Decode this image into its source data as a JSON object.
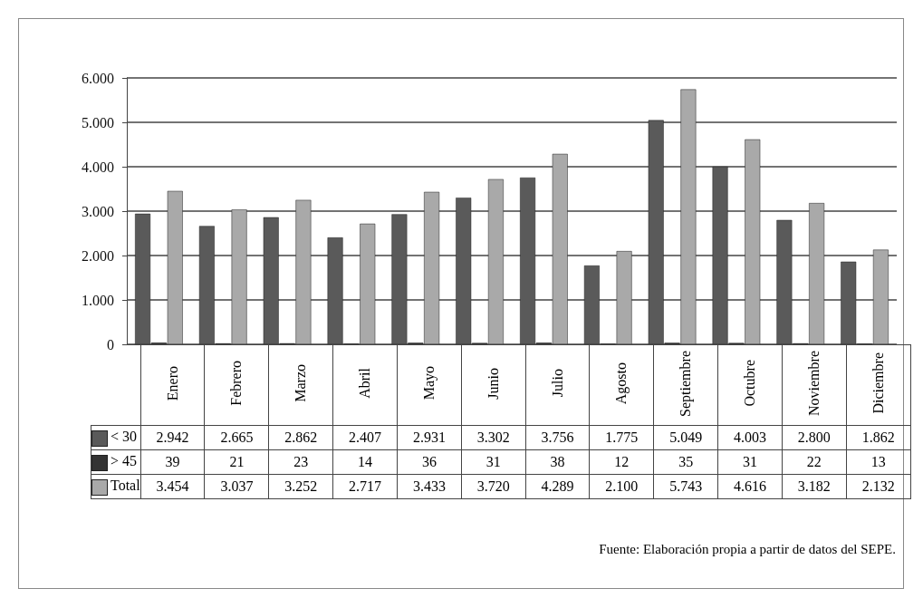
{
  "chart_data": {
    "type": "bar",
    "categories": [
      "Enero",
      "Febrero",
      "Marzo",
      "Abril",
      "Mayo",
      "Junio",
      "Julio",
      "Agosto",
      "Septiembre",
      "Octubre",
      "Noviembre",
      "Diciembre"
    ],
    "series": [
      {
        "name": "< 30",
        "color": "#5a5a5a",
        "values": [
          2942,
          2665,
          2862,
          2407,
          2931,
          3302,
          3756,
          1775,
          5049,
          4003,
          2800,
          1862
        ],
        "value_labels": [
          "2.942",
          "2.665",
          "2.862",
          "2.407",
          "2.931",
          "3.302",
          "3.756",
          "1.775",
          "5.049",
          "4.003",
          "2.800",
          "1.862"
        ]
      },
      {
        "name": "> 45",
        "color": "#333333",
        "values": [
          39,
          21,
          23,
          14,
          36,
          31,
          38,
          12,
          35,
          31,
          22,
          13
        ],
        "value_labels": [
          "39",
          "21",
          "23",
          "14",
          "36",
          "31",
          "38",
          "12",
          "35",
          "31",
          "22",
          "13"
        ]
      },
      {
        "name": "Total",
        "color": "#a9a9a9",
        "values": [
          3454,
          3037,
          3252,
          2717,
          3433,
          3720,
          4289,
          2100,
          5743,
          4616,
          3182,
          2132
        ],
        "value_labels": [
          "3.454",
          "3.037",
          "3.252",
          "2.717",
          "3.433",
          "3.720",
          "4.289",
          "2.100",
          "5.743",
          "4.616",
          "3.182",
          "2.132"
        ]
      }
    ],
    "ylim": [
      0,
      6000
    ],
    "yticks": [
      0,
      {
        "value": 1000,
        "label": "1.000"
      },
      {
        "value": 2000,
        "label": "2.000"
      },
      {
        "value": 3000,
        "label": "3.000"
      },
      {
        "value": 4000,
        "label": "4.000"
      },
      {
        "value": 5000,
        "label": "5.000"
      },
      {
        "value": 6000,
        "label": "6.000"
      }
    ],
    "grid": "y",
    "legend": "bottom left",
    "annotations": [
      "Fuente: Elaboración propia a partir de datos del SEPE."
    ]
  }
}
